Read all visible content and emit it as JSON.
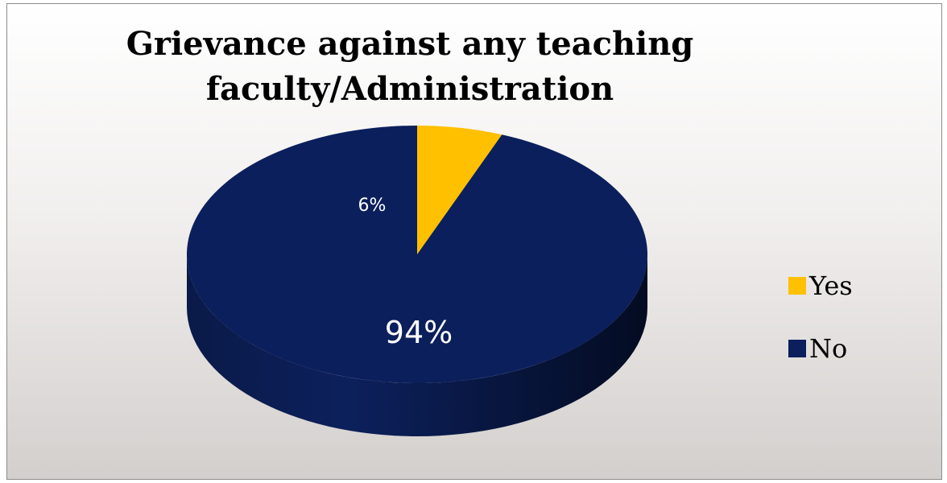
{
  "chart_data": {
    "type": "pie",
    "style": "3d",
    "title": "Grievance against any teaching\nfaculty/Administration",
    "categories": [
      "Yes",
      "No"
    ],
    "values": [
      6,
      94
    ],
    "data_labels": [
      "6%",
      "94%"
    ],
    "colors": [
      "#ffc000",
      "#0b1f5c"
    ],
    "legend": {
      "position": "right",
      "entries": [
        "Yes",
        "No"
      ]
    }
  }
}
